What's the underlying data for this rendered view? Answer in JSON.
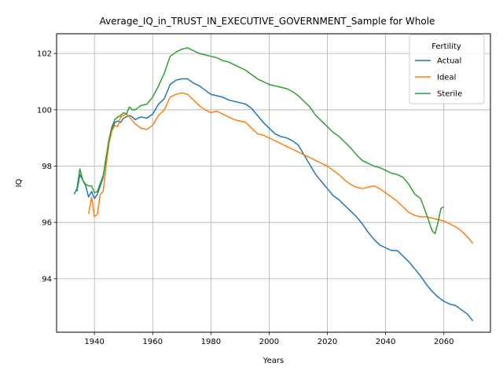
{
  "chart_data": {
    "type": "line",
    "title": "Average_IQ_in_TRUST_IN_EXECUTIVE_GOVERNMENT_Sample for Whole",
    "xlabel": "Years",
    "ylabel": "IQ",
    "xlim": [
      1927,
      2076
    ],
    "ylim": [
      92.1,
      102.7
    ],
    "xticks": [
      1940,
      1960,
      1980,
      2000,
      2020,
      2040,
      2060
    ],
    "yticks": [
      94,
      96,
      98,
      100,
      102
    ],
    "grid": true,
    "legend": {
      "title": "Fertility",
      "placement": "top-right"
    },
    "series": [
      {
        "name": "Actual",
        "color": "#1f77b4",
        "points": [
          [
            1934,
            97.1
          ],
          [
            1935,
            97.7
          ],
          [
            1936,
            97.5
          ],
          [
            1937,
            97.3
          ],
          [
            1938,
            96.9
          ],
          [
            1939,
            97.1
          ],
          [
            1940,
            96.85
          ],
          [
            1941,
            97.0
          ],
          [
            1942,
            97.3
          ],
          [
            1943,
            97.6
          ],
          [
            1944,
            98.3
          ],
          [
            1945,
            98.9
          ],
          [
            1946,
            99.3
          ],
          [
            1947,
            99.55
          ],
          [
            1948,
            99.6
          ],
          [
            1949,
            99.55
          ],
          [
            1950,
            99.7
          ],
          [
            1952,
            99.8
          ],
          [
            1953,
            99.75
          ],
          [
            1954,
            99.65
          ],
          [
            1956,
            99.75
          ],
          [
            1958,
            99.7
          ],
          [
            1960,
            99.85
          ],
          [
            1962,
            100.2
          ],
          [
            1964,
            100.4
          ],
          [
            1966,
            100.9
          ],
          [
            1968,
            101.05
          ],
          [
            1970,
            101.1
          ],
          [
            1972,
            101.1
          ],
          [
            1974,
            100.95
          ],
          [
            1976,
            100.85
          ],
          [
            1978,
            100.7
          ],
          [
            1980,
            100.55
          ],
          [
            1982,
            100.5
          ],
          [
            1984,
            100.45
          ],
          [
            1986,
            100.35
          ],
          [
            1988,
            100.3
          ],
          [
            1990,
            100.25
          ],
          [
            1992,
            100.2
          ],
          [
            1994,
            100.05
          ],
          [
            1996,
            99.8
          ],
          [
            1998,
            99.55
          ],
          [
            2000,
            99.35
          ],
          [
            2002,
            99.15
          ],
          [
            2004,
            99.05
          ],
          [
            2006,
            99.0
          ],
          [
            2008,
            98.9
          ],
          [
            2010,
            98.75
          ],
          [
            2012,
            98.4
          ],
          [
            2014,
            98.05
          ],
          [
            2016,
            97.7
          ],
          [
            2018,
            97.45
          ],
          [
            2020,
            97.2
          ],
          [
            2022,
            96.95
          ],
          [
            2024,
            96.8
          ],
          [
            2026,
            96.6
          ],
          [
            2028,
            96.4
          ],
          [
            2030,
            96.2
          ],
          [
            2032,
            95.95
          ],
          [
            2034,
            95.65
          ],
          [
            2036,
            95.4
          ],
          [
            2038,
            95.2
          ],
          [
            2040,
            95.1
          ],
          [
            2042,
            95.0
          ],
          [
            2044,
            95.0
          ],
          [
            2046,
            94.8
          ],
          [
            2048,
            94.6
          ],
          [
            2050,
            94.35
          ],
          [
            2052,
            94.1
          ],
          [
            2054,
            93.8
          ],
          [
            2056,
            93.55
          ],
          [
            2058,
            93.35
          ],
          [
            2060,
            93.2
          ],
          [
            2062,
            93.1
          ],
          [
            2064,
            93.05
          ],
          [
            2066,
            92.9
          ],
          [
            2068,
            92.75
          ],
          [
            2070,
            92.5
          ]
        ]
      },
      {
        "name": "Ideal",
        "color": "#ff7f0e",
        "points": [
          [
            1938,
            96.3
          ],
          [
            1939,
            96.9
          ],
          [
            1940,
            96.2
          ],
          [
            1941,
            96.3
          ],
          [
            1942,
            97.0
          ],
          [
            1943,
            97.1
          ],
          [
            1944,
            98.0
          ],
          [
            1945,
            98.8
          ],
          [
            1946,
            99.25
          ],
          [
            1947,
            99.45
          ],
          [
            1948,
            99.4
          ],
          [
            1949,
            99.75
          ],
          [
            1951,
            99.85
          ],
          [
            1952,
            99.75
          ],
          [
            1954,
            99.5
          ],
          [
            1956,
            99.35
          ],
          [
            1958,
            99.3
          ],
          [
            1960,
            99.45
          ],
          [
            1962,
            99.8
          ],
          [
            1964,
            100.0
          ],
          [
            1966,
            100.45
          ],
          [
            1968,
            100.55
          ],
          [
            1970,
            100.6
          ],
          [
            1972,
            100.55
          ],
          [
            1974,
            100.35
          ],
          [
            1976,
            100.15
          ],
          [
            1978,
            100.0
          ],
          [
            1980,
            99.9
          ],
          [
            1982,
            99.95
          ],
          [
            1984,
            99.85
          ],
          [
            1986,
            99.75
          ],
          [
            1988,
            99.65
          ],
          [
            1990,
            99.6
          ],
          [
            1992,
            99.55
          ],
          [
            1994,
            99.35
          ],
          [
            1996,
            99.15
          ],
          [
            1998,
            99.1
          ],
          [
            2000,
            99.0
          ],
          [
            2002,
            98.9
          ],
          [
            2004,
            98.8
          ],
          [
            2006,
            98.7
          ],
          [
            2008,
            98.6
          ],
          [
            2010,
            98.5
          ],
          [
            2012,
            98.4
          ],
          [
            2014,
            98.3
          ],
          [
            2016,
            98.2
          ],
          [
            2018,
            98.1
          ],
          [
            2020,
            98.0
          ],
          [
            2022,
            97.85
          ],
          [
            2024,
            97.7
          ],
          [
            2026,
            97.5
          ],
          [
            2028,
            97.35
          ],
          [
            2030,
            97.25
          ],
          [
            2032,
            97.2
          ],
          [
            2034,
            97.25
          ],
          [
            2036,
            97.3
          ],
          [
            2038,
            97.2
          ],
          [
            2040,
            97.05
          ],
          [
            2042,
            96.9
          ],
          [
            2044,
            96.75
          ],
          [
            2046,
            96.55
          ],
          [
            2048,
            96.35
          ],
          [
            2050,
            96.25
          ],
          [
            2052,
            96.2
          ],
          [
            2054,
            96.2
          ],
          [
            2056,
            96.15
          ],
          [
            2058,
            96.1
          ],
          [
            2060,
            96.05
          ],
          [
            2062,
            95.95
          ],
          [
            2064,
            95.85
          ],
          [
            2066,
            95.7
          ],
          [
            2068,
            95.5
          ],
          [
            2070,
            95.25
          ]
        ]
      },
      {
        "name": "Sterile",
        "color": "#2ca02c",
        "points": [
          [
            1933,
            97.0
          ],
          [
            1934,
            97.2
          ],
          [
            1935,
            97.9
          ],
          [
            1936,
            97.5
          ],
          [
            1937,
            97.35
          ],
          [
            1938,
            97.3
          ],
          [
            1939,
            97.3
          ],
          [
            1940,
            97.05
          ],
          [
            1941,
            97.1
          ],
          [
            1942,
            97.4
          ],
          [
            1943,
            97.65
          ],
          [
            1944,
            98.3
          ],
          [
            1945,
            98.95
          ],
          [
            1946,
            99.4
          ],
          [
            1947,
            99.65
          ],
          [
            1948,
            99.75
          ],
          [
            1949,
            99.8
          ],
          [
            1950,
            99.9
          ],
          [
            1951,
            99.85
          ],
          [
            1952,
            100.1
          ],
          [
            1953,
            100.0
          ],
          [
            1954,
            100.0
          ],
          [
            1956,
            100.15
          ],
          [
            1958,
            100.2
          ],
          [
            1960,
            100.45
          ],
          [
            1962,
            100.85
          ],
          [
            1964,
            101.3
          ],
          [
            1966,
            101.9
          ],
          [
            1968,
            102.05
          ],
          [
            1970,
            102.15
          ],
          [
            1972,
            102.2
          ],
          [
            1974,
            102.1
          ],
          [
            1976,
            102.0
          ],
          [
            1978,
            101.95
          ],
          [
            1980,
            101.9
          ],
          [
            1982,
            101.85
          ],
          [
            1984,
            101.75
          ],
          [
            1986,
            101.7
          ],
          [
            1988,
            101.6
          ],
          [
            1990,
            101.5
          ],
          [
            1992,
            101.4
          ],
          [
            1994,
            101.25
          ],
          [
            1996,
            101.1
          ],
          [
            1998,
            101.0
          ],
          [
            2000,
            100.9
          ],
          [
            2002,
            100.85
          ],
          [
            2004,
            100.8
          ],
          [
            2006,
            100.75
          ],
          [
            2008,
            100.65
          ],
          [
            2010,
            100.5
          ],
          [
            2012,
            100.3
          ],
          [
            2014,
            100.1
          ],
          [
            2016,
            99.8
          ],
          [
            2018,
            99.6
          ],
          [
            2020,
            99.4
          ],
          [
            2022,
            99.2
          ],
          [
            2024,
            99.05
          ],
          [
            2026,
            98.85
          ],
          [
            2028,
            98.65
          ],
          [
            2030,
            98.4
          ],
          [
            2032,
            98.2
          ],
          [
            2034,
            98.1
          ],
          [
            2036,
            98.0
          ],
          [
            2038,
            97.95
          ],
          [
            2040,
            97.85
          ],
          [
            2042,
            97.75
          ],
          [
            2044,
            97.7
          ],
          [
            2046,
            97.6
          ],
          [
            2048,
            97.35
          ],
          [
            2050,
            97.0
          ],
          [
            2052,
            96.85
          ],
          [
            2054,
            96.3
          ],
          [
            2055,
            96.0
          ],
          [
            2056,
            95.7
          ],
          [
            2057,
            95.6
          ],
          [
            2058,
            96.0
          ],
          [
            2059,
            96.5
          ],
          [
            2060,
            96.55
          ]
        ]
      }
    ]
  }
}
